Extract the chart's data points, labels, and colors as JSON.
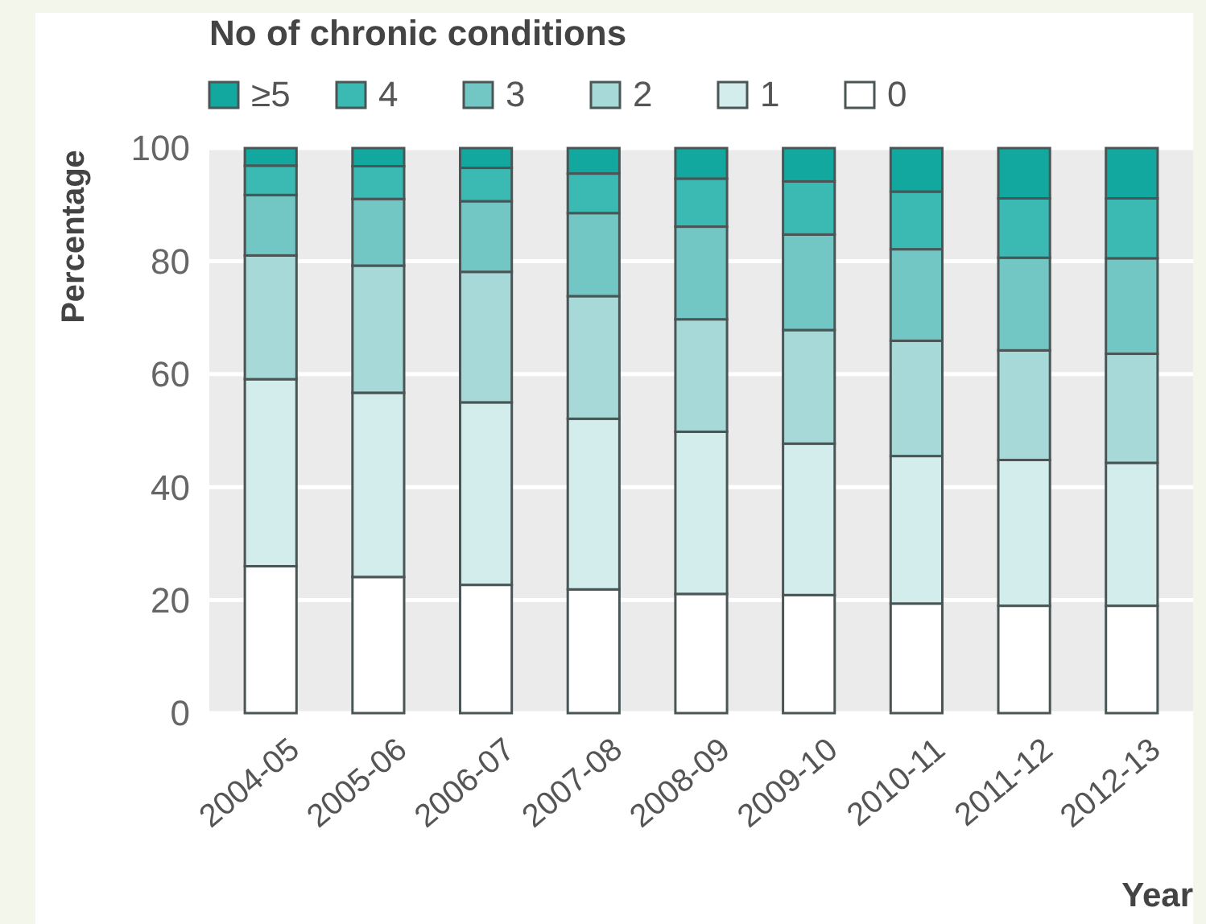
{
  "chart_data": {
    "type": "bar",
    "stacked": true,
    "legend_title": "No of chronic conditions",
    "ylabel": "Percentage",
    "xlabel": "Year",
    "categories": [
      "2004-05",
      "2005-06",
      "2006-07",
      "2007-08",
      "2008-09",
      "2009-10",
      "2010-11",
      "2011-12",
      "2012-13"
    ],
    "series": [
      {
        "name": "0",
        "color": "#ffffff",
        "values": [
          26.0,
          24.1,
          22.7,
          21.9,
          21.1,
          20.9,
          19.4,
          19.0,
          19.0
        ]
      },
      {
        "name": "1",
        "color": "#d3ecec",
        "values": [
          33.1,
          32.6,
          32.3,
          30.2,
          28.7,
          26.8,
          26.1,
          25.8,
          25.3
        ]
      },
      {
        "name": "2",
        "color": "#a6d9d7",
        "values": [
          21.9,
          22.5,
          23.1,
          21.7,
          19.9,
          20.1,
          20.4,
          19.4,
          19.3
        ]
      },
      {
        "name": "3",
        "color": "#72c6c3",
        "values": [
          10.7,
          11.8,
          12.5,
          14.7,
          16.4,
          16.9,
          16.2,
          16.4,
          16.9
        ]
      },
      {
        "name": "4",
        "color": "#3bbab3",
        "values": [
          5.2,
          5.8,
          5.9,
          7.0,
          8.5,
          9.4,
          10.2,
          10.5,
          10.6
        ]
      },
      {
        "name": "≥5",
        "color": "#12a8a0",
        "values": [
          3.1,
          3.2,
          3.5,
          4.5,
          5.4,
          5.9,
          7.7,
          8.9,
          8.9
        ]
      }
    ],
    "ylim": [
      0,
      100
    ],
    "yticks": [
      0,
      20,
      40,
      60,
      80,
      100
    ],
    "grid": "y",
    "legend": "top left"
  }
}
